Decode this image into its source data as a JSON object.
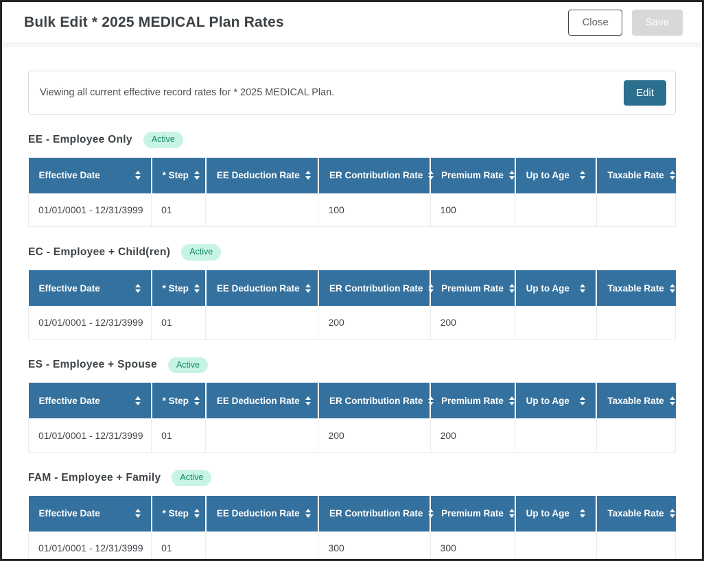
{
  "window": {
    "title": "Bulk Edit * 2025 MEDICAL Plan Rates",
    "close_button": "Close",
    "save_button": "Save"
  },
  "info_bar": {
    "message": "Viewing all current effective record rates for * 2025 MEDICAL Plan.",
    "edit_button": "Edit"
  },
  "columns": [
    "Effective Date",
    "* Step",
    "EE Deduction Rate",
    "ER Contribution Rate",
    "Premium Rate",
    "Up to Age",
    "Taxable Rate"
  ],
  "sections": [
    {
      "title": "EE - Employee Only",
      "badge": "Active",
      "rows": [
        {
          "cells": [
            "01/01/0001 - 12/31/3999",
            "01",
            "",
            "100",
            "100",
            "",
            ""
          ]
        }
      ]
    },
    {
      "title": "EC - Employee + Child(ren)",
      "badge": "Active",
      "rows": [
        {
          "cells": [
            "01/01/0001 - 12/31/3999",
            "01",
            "",
            "200",
            "200",
            "",
            ""
          ]
        }
      ]
    },
    {
      "title": "ES - Employee + Spouse",
      "badge": "Active",
      "rows": [
        {
          "cells": [
            "01/01/0001 - 12/31/3999",
            "01",
            "",
            "200",
            "200",
            "",
            ""
          ]
        }
      ]
    },
    {
      "title": "FAM - Employee + Family",
      "badge": "Active",
      "rows": [
        {
          "cells": [
            "01/01/0001 - 12/31/3999",
            "01",
            "",
            "300",
            "300",
            "",
            ""
          ]
        }
      ]
    }
  ],
  "icons": {
    "sort": "sort-arrows-icon"
  },
  "colors": {
    "table_header_bg": "#35719e",
    "edit_button_bg": "#2d6f8e",
    "badge_bg": "#c8f4e3",
    "badge_text": "#0c8a66",
    "save_disabled_bg": "#d8d8d8"
  }
}
